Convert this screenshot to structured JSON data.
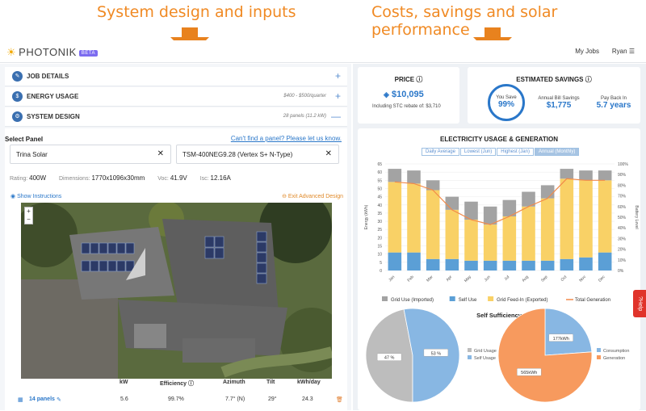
{
  "annotations": {
    "left": "System design and inputs",
    "right": "Costs, savings and solar performance"
  },
  "topbar": {
    "brand": "PHOTONIK",
    "badge": "BETA",
    "my_jobs": "My Jobs",
    "user": "Ryan"
  },
  "accordion": [
    {
      "label": "JOB DETAILS",
      "note": "",
      "toggle": "+"
    },
    {
      "label": "ENERGY USAGE",
      "note": "$400 - $500/quarter",
      "toggle": "+"
    },
    {
      "label": "SYSTEM DESIGN",
      "note": "28 panels (11.2 kW)",
      "toggle": "—"
    }
  ],
  "panel": {
    "select_label": "Select Panel",
    "cant_find": "Can't find a panel? Please let us know.",
    "brand_value": "Trina Solar",
    "model_value": "TSM-400NEG9.28 (Vertex S+ N-Type)",
    "specs": [
      {
        "k": "Rating:",
        "v": "400W"
      },
      {
        "k": "Dimensions:",
        "v": "1770x1096x30mm"
      },
      {
        "k": "Voc:",
        "v": "41.9V"
      },
      {
        "k": "Isc:",
        "v": "12.16A"
      }
    ],
    "show_instructions": "Show Instructions",
    "exit_advanced": "Exit Advanced Design"
  },
  "table": {
    "headers": [
      "kW",
      "Efficiency",
      "Azimuth",
      "Tilt",
      "kWh/day"
    ],
    "row": {
      "label": "14 panels",
      "kw": "5.6",
      "efficiency": "99.7%",
      "azimuth": "7.7° (N)",
      "tilt": "29°",
      "kwh": "24.3"
    }
  },
  "price": {
    "title": "PRICE",
    "value": "$10,095",
    "rebate": "Including STC rebate of:  $3,710"
  },
  "savings": {
    "title": "ESTIMATED SAVINGS",
    "you_save_label": "You Save",
    "you_save": "99%",
    "annual_label": "Annual Bill Savings",
    "annual": "$1,775",
    "payback_label": "Pay Back In",
    "payback": "5.7 years"
  },
  "usage_chart": {
    "title": "ELECTRICITY USAGE & GENERATION",
    "tabs": [
      "Daily Average",
      "Lowest (Jun)",
      "Highest (Jan)",
      "Annual (Monthly)"
    ],
    "active_tab": 3,
    "ylabel_left": "Energy (kWh)",
    "ylabel_right": "Battery Level"
  },
  "chart_data": [
    {
      "type": "bar",
      "title": "",
      "categories": [
        "Jan",
        "Feb",
        "Mar",
        "Apr",
        "May",
        "Jun",
        "Jul",
        "Aug",
        "Sep",
        "Oct",
        "Nov",
        "Dec"
      ],
      "ylim": [
        0,
        65
      ],
      "y2lim": [
        0,
        100
      ],
      "yticks": [
        0,
        5,
        10,
        15,
        20,
        25,
        30,
        35,
        40,
        45,
        50,
        55,
        60,
        65
      ],
      "y2ticks": [
        "0%",
        "10%",
        "20%",
        "30%",
        "40%",
        "50%",
        "60%",
        "70%",
        "80%",
        "90%",
        "100%"
      ],
      "series": [
        {
          "name": "Grid Use (Imported)",
          "color": "#a3a3a3",
          "values": [
            8,
            8,
            6,
            8,
            11,
            11,
            10,
            9,
            8,
            6,
            6,
            6
          ]
        },
        {
          "name": "Self Use",
          "color": "#5b9fd6",
          "values": [
            11,
            11,
            7,
            7,
            6,
            6,
            6,
            6,
            6,
            7,
            8,
            11
          ]
        },
        {
          "name": "Grid Feed-In (Exported)",
          "color": "#f9d166",
          "values": [
            43,
            42,
            42,
            30,
            25,
            22,
            27,
            33,
            38,
            49,
            47,
            44
          ]
        },
        {
          "name": "Total Generation",
          "color": "#f28a4a",
          "type": "line",
          "values": [
            54,
            53,
            49,
            37,
            31,
            28,
            33,
            39,
            44,
            56,
            55,
            55
          ]
        }
      ]
    },
    {
      "type": "pie",
      "title": "Self Sufficiency",
      "legend": [
        "Grid Usage",
        "Self Usage"
      ],
      "slices": [
        {
          "label": "Grid Usage",
          "value": 47,
          "text": "47 %",
          "color": "#bdbdbd"
        },
        {
          "label": "Self Usage",
          "value": 53,
          "text": "53 %",
          "color": "#88b7e3"
        }
      ]
    },
    {
      "type": "pie",
      "title": "",
      "legend": [
        "Consumption",
        "Generation"
      ],
      "slices": [
        {
          "label": "Consumption",
          "value": 177,
          "text": "177kWh",
          "color": "#88b7e3"
        },
        {
          "label": "Generation",
          "value": 565,
          "text": "565kWh",
          "color": "#f79a5e"
        }
      ]
    }
  ],
  "help": "Help"
}
